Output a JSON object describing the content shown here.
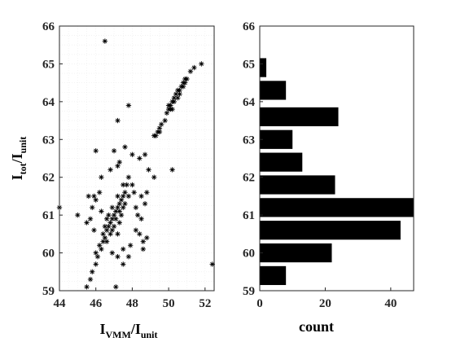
{
  "chart_data": [
    {
      "type": "scatter",
      "title": "",
      "xlabel": {
        "main": "I",
        "sub": "VMM",
        "mid": "/I",
        "sub2": "unit"
      },
      "ylabel": {
        "main": "I",
        "sub": "tot",
        "mid": "/I",
        "sub2": "unit"
      },
      "xlim": [
        44,
        52.5
      ],
      "ylim": [
        59,
        66
      ],
      "xticks": [
        44,
        46,
        48,
        50,
        52
      ],
      "yticks": [
        59,
        60,
        61,
        62,
        63,
        64,
        65,
        66
      ],
      "grid": true,
      "marker": "asterisk",
      "marker_color": "#000000",
      "points": [
        [
          46.5,
          65.6
        ],
        [
          44.0,
          61.2
        ],
        [
          45.0,
          61.0
        ],
        [
          45.5,
          60.8
        ],
        [
          52.4,
          59.7
        ],
        [
          50.2,
          62.2
        ],
        [
          47.8,
          63.9
        ],
        [
          47.2,
          63.5
        ],
        [
          47.1,
          59.1
        ],
        [
          45.5,
          59.1
        ],
        [
          45.7,
          59.3
        ],
        [
          45.8,
          59.5
        ],
        [
          46.0,
          59.7
        ],
        [
          46.1,
          59.9
        ],
        [
          46.3,
          60.1
        ],
        [
          46.4,
          60.3
        ],
        [
          46.5,
          60.4
        ],
        [
          46.6,
          60.6
        ],
        [
          46.7,
          60.7
        ],
        [
          46.8,
          60.8
        ],
        [
          46.9,
          60.9
        ],
        [
          47.0,
          61.0
        ],
        [
          47.1,
          61.1
        ],
        [
          47.2,
          61.2
        ],
        [
          47.3,
          61.3
        ],
        [
          47.4,
          61.4
        ],
        [
          47.5,
          61.5
        ],
        [
          47.6,
          61.6
        ],
        [
          47.7,
          61.8
        ],
        [
          47.8,
          62.0
        ],
        [
          46.4,
          60.5
        ],
        [
          46.6,
          60.3
        ],
        [
          46.8,
          60.5
        ],
        [
          46.5,
          60.7
        ],
        [
          46.9,
          60.6
        ],
        [
          47.0,
          60.7
        ],
        [
          47.1,
          60.9
        ],
        [
          46.7,
          61.0
        ],
        [
          47.3,
          61.1
        ],
        [
          47.4,
          61.0
        ],
        [
          47.2,
          61.5
        ],
        [
          47.5,
          61.2
        ],
        [
          47.6,
          61.3
        ],
        [
          47.3,
          60.8
        ],
        [
          46.9,
          61.2
        ],
        [
          47.8,
          61.5
        ],
        [
          48.0,
          61.8
        ],
        [
          47.5,
          61.8
        ],
        [
          47.2,
          60.5
        ],
        [
          46.6,
          60.9
        ],
        [
          45.9,
          61.5
        ],
        [
          46.0,
          61.4
        ],
        [
          46.2,
          61.6
        ],
        [
          45.8,
          61.2
        ],
        [
          48.5,
          61.5
        ],
        [
          48.7,
          61.3
        ],
        [
          48.3,
          61.0
        ],
        [
          48.8,
          61.6
        ],
        [
          48.2,
          61.2
        ],
        [
          48.5,
          60.9
        ],
        [
          46.3,
          62.0
        ],
        [
          46.8,
          62.2
        ],
        [
          47.0,
          62.7
        ],
        [
          47.3,
          62.4
        ],
        [
          47.6,
          62.8
        ],
        [
          48.0,
          62.6
        ],
        [
          48.4,
          62.5
        ],
        [
          48.7,
          62.6
        ],
        [
          47.2,
          62.3
        ],
        [
          46.0,
          62.7
        ],
        [
          48.1,
          61.6
        ],
        [
          48.2,
          60.6
        ],
        [
          48.4,
          60.5
        ],
        [
          48.6,
          60.3
        ],
        [
          48.8,
          60.4
        ],
        [
          47.9,
          60.2
        ],
        [
          47.5,
          60.1
        ],
        [
          47.2,
          59.9
        ],
        [
          46.9,
          60.0
        ],
        [
          47.5,
          59.7
        ],
        [
          47.8,
          59.9
        ],
        [
          48.6,
          60.1
        ],
        [
          46.2,
          60.2
        ],
        [
          46.0,
          60.0
        ],
        [
          45.9,
          60.6
        ],
        [
          45.7,
          60.9
        ],
        [
          46.3,
          61.1
        ],
        [
          45.6,
          61.5
        ],
        [
          48.9,
          62.2
        ],
        [
          49.2,
          62.0
        ],
        [
          49.3,
          63.1
        ],
        [
          49.4,
          63.2
        ],
        [
          49.5,
          63.3
        ],
        [
          49.6,
          63.4
        ],
        [
          49.8,
          63.5
        ],
        [
          49.9,
          63.7
        ],
        [
          50.0,
          63.8
        ],
        [
          50.1,
          63.9
        ],
        [
          50.2,
          64.0
        ],
        [
          50.3,
          64.1
        ],
        [
          50.4,
          64.2
        ],
        [
          50.5,
          64.3
        ],
        [
          50.6,
          64.3
        ],
        [
          50.7,
          64.4
        ],
        [
          50.8,
          64.5
        ],
        [
          50.9,
          64.5
        ],
        [
          51.0,
          64.6
        ],
        [
          50.1,
          63.8
        ],
        [
          50.0,
          63.9
        ],
        [
          50.2,
          63.8
        ],
        [
          50.3,
          64.0
        ],
        [
          50.5,
          64.1
        ],
        [
          50.6,
          64.2
        ],
        [
          50.8,
          64.4
        ],
        [
          50.9,
          64.6
        ],
        [
          51.2,
          64.8
        ],
        [
          51.4,
          64.9
        ],
        [
          51.8,
          65.0
        ],
        [
          49.5,
          63.2
        ],
        [
          49.2,
          63.1
        ]
      ]
    },
    {
      "type": "bar",
      "orientation": "horizontal",
      "title": "",
      "xlabel": "count",
      "ylabel": "",
      "xlim": [
        0,
        47
      ],
      "ylim": [
        59,
        66
      ],
      "xticks": [
        0,
        20,
        40
      ],
      "yticks": [
        59,
        60,
        61,
        62,
        63,
        64,
        65,
        66
      ],
      "grid": false,
      "bar_color": "#000000",
      "bin_width": 0.5,
      "bins": [
        {
          "center": 59.4,
          "count": 8
        },
        {
          "center": 60.0,
          "count": 22
        },
        {
          "center": 60.6,
          "count": 43
        },
        {
          "center": 61.2,
          "count": 47
        },
        {
          "center": 61.8,
          "count": 23
        },
        {
          "center": 62.4,
          "count": 13
        },
        {
          "center": 63.0,
          "count": 10
        },
        {
          "center": 63.6,
          "count": 24
        },
        {
          "center": 64.3,
          "count": 8
        },
        {
          "center": 64.9,
          "count": 2
        }
      ]
    }
  ]
}
